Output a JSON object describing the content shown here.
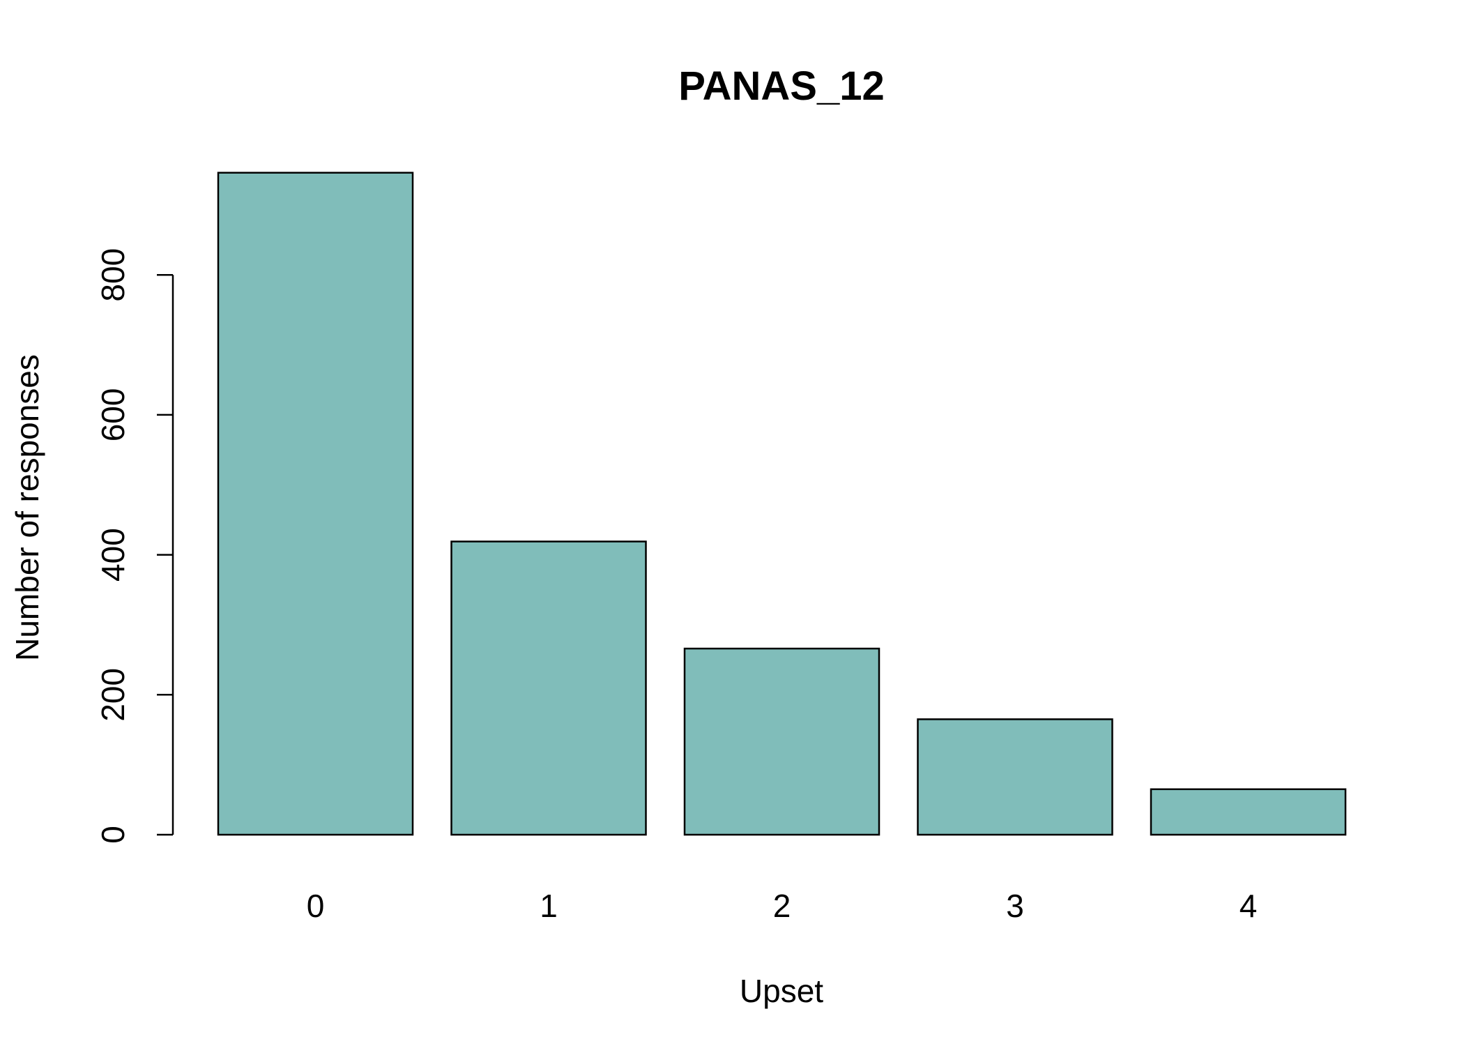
{
  "chart_data": {
    "type": "bar",
    "title": "PANAS_12",
    "xlabel": "Upset",
    "ylabel": "Number of responses",
    "categories": [
      "0",
      "1",
      "2",
      "3",
      "4"
    ],
    "values": [
      946,
      419,
      266,
      165,
      65
    ],
    "yticks": [
      0,
      200,
      400,
      600,
      800
    ],
    "ylim": [
      0,
      946
    ],
    "bar_color": "#80BDBA",
    "bar_border_color": "#000000",
    "grid": false,
    "legend": "none"
  }
}
